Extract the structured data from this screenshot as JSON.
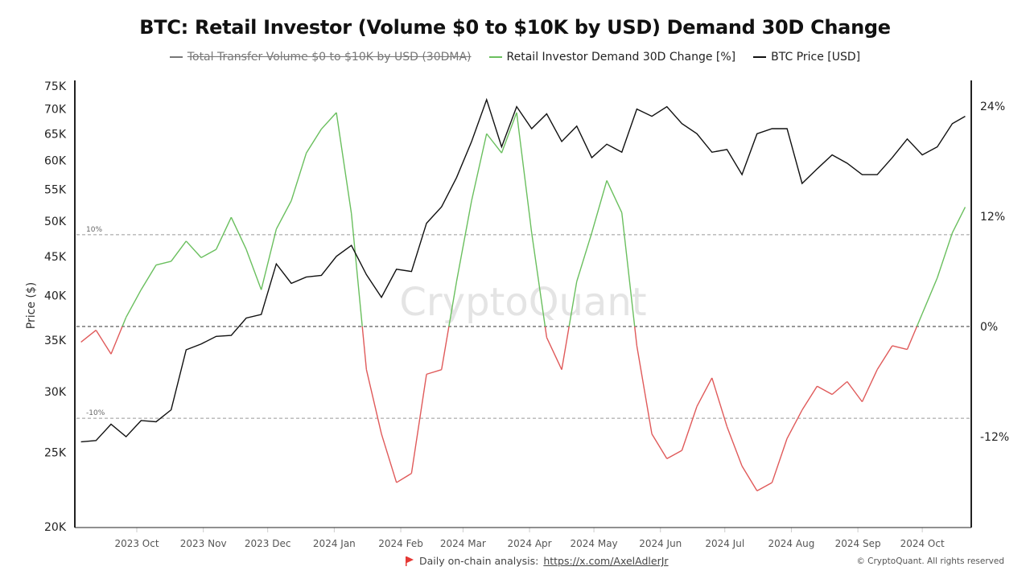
{
  "header": {
    "title": "BTC: Retail Investor (Volume $0 to $10K by USD) Demand 30D Change"
  },
  "legend": [
    {
      "label": "Total Transfer Volume $0 to $10K by USD (30DMA)",
      "color": "#777777",
      "hidden": true
    },
    {
      "label": "Retail Investor Demand 30D Change [%]",
      "color": "#6abf5e",
      "hidden": false
    },
    {
      "label": "BTC Price [USD]",
      "color": "#111111",
      "hidden": false
    }
  ],
  "footer": {
    "text": "Daily on-chain analysis:",
    "link": "https://x.com/AxelAdlerJr",
    "copyright": "© CryptoQuant. All rights reserved",
    "flag_icon": "red-flag-icon"
  },
  "watermark": "CryptoQuant",
  "chart_data": {
    "type": "line",
    "ylabel_left": "Price ($)",
    "left_axis": {
      "scale": "log",
      "range": [
        20000,
        75000
      ],
      "ticks": [
        "20K",
        "25K",
        "30K",
        "35K",
        "40K",
        "45K",
        "50K",
        "55K",
        "60K",
        "65K",
        "70K",
        "75K"
      ]
    },
    "right_axis": {
      "range": [
        -24,
        24
      ],
      "ticks": [
        "-12%",
        "0%",
        "12%",
        "24%"
      ]
    },
    "reference_lines": [
      {
        "value": 10,
        "label": "10%"
      },
      {
        "value": 0,
        "label": ""
      },
      {
        "value": -10,
        "label": "-10%"
      }
    ],
    "x_ticks": [
      {
        "label": "2023 Oct",
        "date": "2023-10-01"
      },
      {
        "label": "2023 Nov",
        "date": "2023-11-01"
      },
      {
        "label": "2023 Dec",
        "date": "2023-12-01"
      },
      {
        "label": "2024 Jan",
        "date": "2024-01-01"
      },
      {
        "label": "2024 Feb",
        "date": "2024-02-01"
      },
      {
        "label": "2024 Mar",
        "date": "2024-03-01"
      },
      {
        "label": "2024 Apr",
        "date": "2024-04-01"
      },
      {
        "label": "2024 May",
        "date": "2024-05-01"
      },
      {
        "label": "2024 Jun",
        "date": "2024-06-01"
      },
      {
        "label": "2024 Jul",
        "date": "2024-07-01"
      },
      {
        "label": "2024 Aug",
        "date": "2024-08-01"
      },
      {
        "label": "2024 Sep",
        "date": "2024-09-01"
      },
      {
        "label": "2024 Oct",
        "date": "2024-10-01"
      }
    ],
    "positive_color": "#6abf5e",
    "negative_color": "#e05a5a",
    "price_color": "#111111",
    "dates": [
      "2023-09-05",
      "2023-09-12",
      "2023-09-19",
      "2023-09-26",
      "2023-10-03",
      "2023-10-10",
      "2023-10-17",
      "2023-10-24",
      "2023-10-31",
      "2023-11-07",
      "2023-11-14",
      "2023-11-21",
      "2023-11-28",
      "2023-12-05",
      "2023-12-12",
      "2023-12-19",
      "2023-12-26",
      "2024-01-02",
      "2024-01-09",
      "2024-01-16",
      "2024-01-23",
      "2024-01-30",
      "2024-02-06",
      "2024-02-13",
      "2024-02-20",
      "2024-02-27",
      "2024-03-05",
      "2024-03-12",
      "2024-03-19",
      "2024-03-26",
      "2024-04-02",
      "2024-04-09",
      "2024-04-16",
      "2024-04-23",
      "2024-04-30",
      "2024-05-07",
      "2024-05-14",
      "2024-05-21",
      "2024-05-28",
      "2024-06-04",
      "2024-06-11",
      "2024-06-18",
      "2024-06-25",
      "2024-07-02",
      "2024-07-09",
      "2024-07-16",
      "2024-07-23",
      "2024-07-30",
      "2024-08-06",
      "2024-08-13",
      "2024-08-20",
      "2024-08-27",
      "2024-09-03",
      "2024-09-10",
      "2024-09-17",
      "2024-09-24",
      "2024-10-01",
      "2024-10-08",
      "2024-10-15",
      "2024-10-21"
    ],
    "series": [
      {
        "name": "Retail Investor Demand 30D Change [%]",
        "axis": "right",
        "values": [
          -1.7,
          -0.4,
          -3,
          1,
          4,
          6.7,
          7.1,
          9.3,
          7.5,
          8.4,
          11.9,
          8.4,
          4,
          10.6,
          13.7,
          18.9,
          21.5,
          23.3,
          12.3,
          -4.7,
          -11.7,
          -17,
          -16,
          -5.2,
          -4.7,
          4.9,
          13.7,
          21,
          18.9,
          23.3,
          10.2,
          -1.2,
          -4.7,
          4.9,
          10.2,
          15.9,
          12.4,
          -2.1,
          -11.7,
          -14.4,
          -13.5,
          -8.7,
          -5.6,
          -10.9,
          -15.2,
          -17.9,
          -17,
          -12.2,
          -9.1,
          -6.5,
          -7.4,
          -6,
          -8.2,
          -4.7,
          -2.1,
          -2.5,
          1.4,
          5.3,
          10.2,
          13
        ]
      },
      {
        "name": "BTC Price [USD]",
        "axis": "left",
        "values": [
          25800,
          25900,
          27200,
          26200,
          27500,
          27400,
          28400,
          34000,
          34600,
          35400,
          35500,
          37400,
          37800,
          44000,
          41500,
          42300,
          42500,
          45000,
          46500,
          42600,
          39800,
          43300,
          43000,
          49700,
          52200,
          57000,
          63500,
          72000,
          62500,
          70500,
          66000,
          69000,
          63500,
          66500,
          60500,
          63000,
          61500,
          70000,
          68500,
          70500,
          67000,
          65000,
          61500,
          62000,
          57500,
          65000,
          66000,
          66000,
          56000,
          58500,
          61000,
          59500,
          57500,
          57500,
          60500,
          64000,
          61000,
          62500,
          67000,
          68500
        ]
      }
    ]
  }
}
